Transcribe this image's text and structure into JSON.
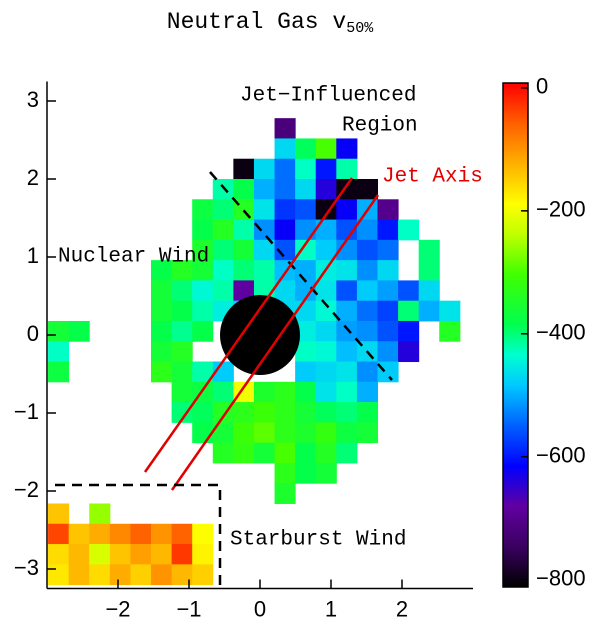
{
  "chart_data": {
    "type": "heatmap",
    "title": "Neutral Gas v",
    "title_subscript": "50%",
    "annotations": [
      "Jet−Influenced",
      "Region",
      "Jet Axis",
      "Nuclear Wind",
      "Starburst Wind"
    ],
    "colormap": "rainbow",
    "x": [
      -2.84,
      -2.55,
      -2.26,
      -1.97,
      -1.68,
      -1.39,
      -1.1,
      -0.81,
      -0.52,
      -0.23,
      0.06,
      0.35,
      0.64,
      0.93,
      1.22,
      1.51,
      1.8,
      2.09,
      2.38,
      2.67
    ],
    "y": [
      2.65,
      2.39,
      2.13,
      1.87,
      1.61,
      1.35,
      1.09,
      0.83,
      0.57,
      0.31,
      0.05,
      -0.21,
      -0.47,
      -0.73,
      -0.99,
      -1.25,
      -1.51,
      -1.77,
      -2.03,
      -2.29,
      -2.55,
      -2.81,
      -3.07
    ],
    "z": [
      [
        null,
        null,
        null,
        null,
        null,
        null,
        null,
        null,
        null,
        null,
        null,
        -720,
        null,
        null,
        null,
        null,
        null,
        null,
        null,
        null
      ],
      [
        null,
        null,
        null,
        null,
        null,
        null,
        null,
        null,
        null,
        null,
        null,
        -470,
        -390,
        -300,
        -620,
        null,
        null,
        null,
        null,
        null
      ],
      [
        null,
        null,
        null,
        null,
        null,
        null,
        null,
        null,
        null,
        -800,
        -470,
        -540,
        -430,
        -600,
        -420,
        null,
        null,
        null,
        null,
        null
      ],
      [
        null,
        null,
        null,
        null,
        null,
        null,
        null,
        null,
        -420,
        -380,
        -500,
        -540,
        -470,
        -640,
        -800,
        -800,
        null,
        null,
        null,
        null
      ],
      [
        null,
        null,
        null,
        null,
        null,
        null,
        null,
        -370,
        -400,
        -340,
        -460,
        -580,
        -560,
        -800,
        -620,
        -500,
        -700,
        null,
        null,
        null
      ],
      [
        null,
        null,
        null,
        null,
        null,
        null,
        null,
        -380,
        -340,
        -420,
        -520,
        -620,
        -520,
        -500,
        -560,
        -520,
        -600,
        -430,
        null,
        null
      ],
      [
        null,
        null,
        null,
        null,
        null,
        null,
        null,
        -350,
        -400,
        -360,
        -470,
        -560,
        -430,
        -480,
        -520,
        -560,
        -540,
        null,
        -400,
        null
      ],
      [
        null,
        null,
        null,
        null,
        null,
        -380,
        -340,
        -360,
        -430,
        -400,
        -420,
        -490,
        -500,
        -450,
        -460,
        -520,
        -470,
        null,
        -400,
        null
      ],
      [
        null,
        null,
        null,
        null,
        null,
        -360,
        -400,
        -440,
        -420,
        -680,
        -420,
        -470,
        -500,
        -460,
        -560,
        -480,
        -510,
        -560,
        -470,
        null
      ],
      [
        null,
        null,
        null,
        null,
        null,
        -360,
        -380,
        -420,
        -450,
        -480,
        -450,
        -470,
        -470,
        -440,
        -500,
        -540,
        -570,
        -400,
        -500,
        -460
      ],
      [
        -360,
        -380,
        null,
        null,
        null,
        -380,
        -410,
        -380,
        null,
        null,
        null,
        null,
        -450,
        -470,
        -510,
        -520,
        -560,
        -600,
        null,
        -340
      ],
      [
        -430,
        null,
        null,
        null,
        null,
        -360,
        -340,
        null,
        null,
        null,
        null,
        null,
        -430,
        -440,
        -490,
        -470,
        -520,
        -640,
        null,
        null
      ],
      [
        -370,
        null,
        null,
        null,
        null,
        -330,
        -360,
        -420,
        -480,
        null,
        null,
        null,
        -480,
        -470,
        -460,
        -520,
        -480,
        null,
        null,
        null
      ],
      [
        null,
        null,
        null,
        null,
        null,
        null,
        -360,
        -370,
        -400,
        -200,
        -350,
        -330,
        -380,
        -460,
        -430,
        -500,
        null,
        null,
        null,
        null
      ],
      [
        null,
        null,
        null,
        null,
        null,
        null,
        -400,
        -390,
        -340,
        -330,
        -310,
        -330,
        -360,
        -390,
        -400,
        -380,
        null,
        null,
        null,
        null
      ],
      [
        null,
        null,
        null,
        null,
        null,
        null,
        null,
        -380,
        -360,
        -310,
        -290,
        -330,
        -350,
        -320,
        -370,
        -360,
        null,
        null,
        null,
        null
      ],
      [
        null,
        null,
        null,
        null,
        null,
        null,
        null,
        null,
        -340,
        -320,
        -360,
        -300,
        -380,
        -340,
        -400,
        null,
        null,
        null,
        null,
        null
      ],
      [
        null,
        null,
        null,
        null,
        null,
        null,
        null,
        null,
        null,
        null,
        null,
        -330,
        -380,
        -360,
        null,
        null,
        null,
        null,
        null,
        null
      ],
      [
        null,
        null,
        null,
        null,
        null,
        null,
        null,
        null,
        null,
        null,
        null,
        -350,
        null,
        null,
        null,
        null,
        null,
        null,
        null,
        null
      ],
      [
        -140,
        null,
        -260,
        null,
        null,
        null,
        null,
        null,
        null,
        null,
        null,
        null,
        null,
        null,
        null,
        null,
        null,
        null,
        null,
        null
      ],
      [
        -40,
        -140,
        -120,
        -90,
        -60,
        -100,
        -60,
        -190,
        null,
        null,
        null,
        null,
        null,
        null,
        null,
        null,
        null,
        null,
        null,
        null
      ],
      [
        -160,
        -130,
        -220,
        -140,
        -110,
        -130,
        -30,
        -180,
        null,
        null,
        null,
        null,
        null,
        null,
        null,
        null,
        null,
        null,
        null,
        null
      ],
      [
        -170,
        -130,
        -160,
        -120,
        -150,
        -100,
        -130,
        -150,
        null,
        null,
        null,
        null,
        null,
        null,
        null,
        null,
        null,
        null,
        null,
        null
      ]
    ],
    "xlim": [
      -3,
      3
    ],
    "ylim": [
      -3.25,
      3.25
    ],
    "xticks": [
      {
        "value": -2,
        "label": "−2"
      },
      {
        "value": -1,
        "label": "−1"
      },
      0,
      1,
      2
    ],
    "yticks": [
      {
        "value": -3,
        "label": "−3"
      },
      {
        "value": -2,
        "label": "−2"
      },
      {
        "value": -1,
        "label": "−1"
      },
      0,
      1,
      2,
      3
    ],
    "clim": [
      -812,
      8
    ],
    "cticks": [
      {
        "value": -800,
        "label": "−800"
      },
      {
        "value": -600,
        "label": "−600"
      },
      {
        "value": -400,
        "label": "−400"
      },
      {
        "value": -200,
        "label": "−200"
      },
      0
    ]
  }
}
